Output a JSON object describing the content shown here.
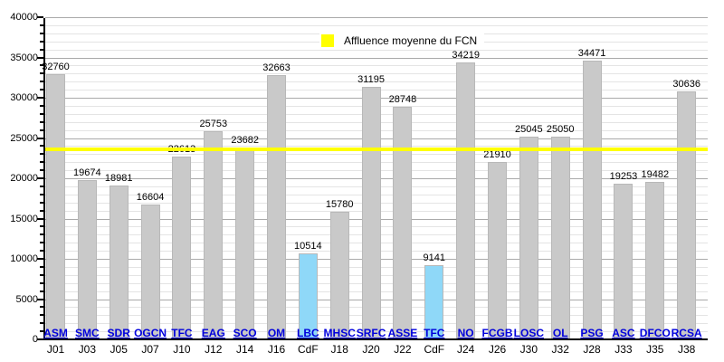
{
  "chart_data": {
    "type": "bar",
    "title": "",
    "xlabel": "",
    "ylabel": "",
    "legend_label": "Affluence moyenne du FCN",
    "legend_position": "top-center",
    "grid": "on",
    "ylim": [
      0,
      40000
    ],
    "ytick_step": 5000,
    "y_minor_step": 1000,
    "average_value": 23723,
    "colors": {
      "bar_league": "#C9C9C9",
      "bar_cup": "#8FD8F8",
      "average_line": "#FFFF00",
      "team_link": "#0000DD",
      "grid_major": "#AAAAAA",
      "grid_minor": "#E4E4E4"
    },
    "bars": [
      {
        "team": "ASM",
        "match": "J01",
        "value": 32760,
        "kind": "league"
      },
      {
        "team": "SMC",
        "match": "J03",
        "value": 19674,
        "kind": "league"
      },
      {
        "team": "SDR",
        "match": "J05",
        "value": 18981,
        "kind": "league"
      },
      {
        "team": "OGCN",
        "match": "J07",
        "value": 16604,
        "kind": "league"
      },
      {
        "team": "TFC",
        "match": "J10",
        "value": 22613,
        "kind": "league"
      },
      {
        "team": "EAG",
        "match": "J12",
        "value": 25753,
        "kind": "league"
      },
      {
        "team": "SCO",
        "match": "J14",
        "value": 23682,
        "kind": "league"
      },
      {
        "team": "OM",
        "match": "J16",
        "value": 32663,
        "kind": "league"
      },
      {
        "team": "LBC",
        "match": "CdF",
        "value": 10514,
        "kind": "cup"
      },
      {
        "team": "MHSC",
        "match": "J18",
        "value": 15780,
        "kind": "league"
      },
      {
        "team": "SRFC",
        "match": "J20",
        "value": 31195,
        "kind": "league"
      },
      {
        "team": "ASSE",
        "match": "J22",
        "value": 28748,
        "kind": "league"
      },
      {
        "team": "TFC",
        "match": "CdF",
        "value": 9141,
        "kind": "cup"
      },
      {
        "team": "NO",
        "match": "J24",
        "value": 34219,
        "kind": "league"
      },
      {
        "team": "FCGB",
        "match": "J26",
        "value": 21910,
        "kind": "league"
      },
      {
        "team": "LOSC",
        "match": "J30",
        "value": 25045,
        "kind": "league"
      },
      {
        "team": "OL",
        "match": "J32",
        "value": 25050,
        "kind": "league"
      },
      {
        "team": "PSG",
        "match": "J28",
        "value": 34471,
        "kind": "league"
      },
      {
        "team": "ASC",
        "match": "J33",
        "value": 19253,
        "kind": "league"
      },
      {
        "team": "DFCO",
        "match": "J35",
        "value": 19482,
        "kind": "league"
      },
      {
        "team": "RCSA",
        "match": "J38",
        "value": 30636,
        "kind": "league"
      }
    ]
  }
}
